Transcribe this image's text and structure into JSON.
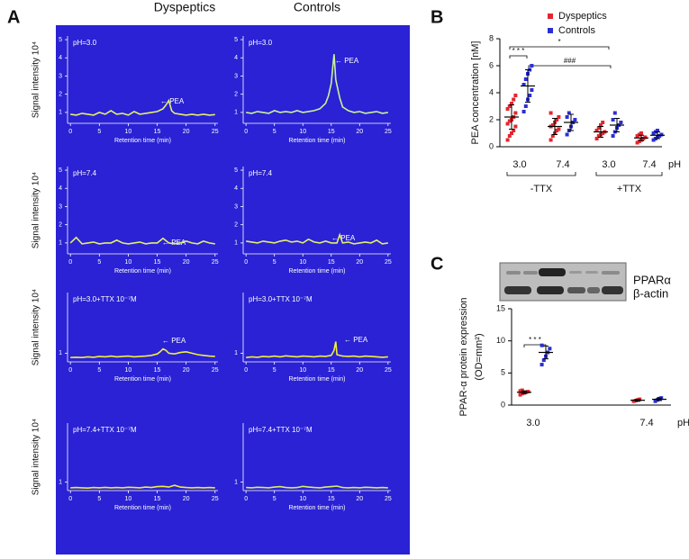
{
  "panel_labels": [
    "A",
    "B",
    "C"
  ],
  "column_titles": [
    "Dyspeptics",
    "Controls"
  ],
  "chart_data": [
    {
      "type": "line",
      "label": "pH=3.0",
      "annotations": [
        "← PEA"
      ],
      "ylabel": "Signal intensity 10⁴",
      "xlabel": "Retention time (min)",
      "color": "#e4ef6c",
      "x": [
        0,
        1,
        2,
        3,
        4,
        5,
        6,
        7,
        8,
        9,
        10,
        11,
        12,
        13,
        14,
        15,
        16,
        16.5,
        17,
        17.5,
        18,
        19,
        20,
        21,
        22,
        23,
        24,
        25
      ],
      "values": [
        0.9,
        0.85,
        0.95,
        0.9,
        0.85,
        1.0,
        0.9,
        1.1,
        0.9,
        0.95,
        0.85,
        1.05,
        0.9,
        0.95,
        1.0,
        1.05,
        1.2,
        1.4,
        1.65,
        1.1,
        0.95,
        0.9,
        0.85,
        0.9,
        0.85,
        0.9,
        0.85,
        0.88
      ],
      "xlim": [
        -0.5,
        25.5
      ],
      "ylim": [
        0.4,
        5.2
      ],
      "xticks": [
        0,
        5,
        10,
        15,
        20,
        25
      ],
      "yticks": [
        1,
        2,
        3,
        4,
        5
      ]
    },
    {
      "type": "line",
      "label": "pH=3.0",
      "annotations": [
        "← PEA"
      ],
      "xlabel": "Retention time (min)",
      "color": "#c9f29a",
      "x": [
        0,
        1,
        2,
        3,
        4,
        5,
        6,
        7,
        8,
        9,
        10,
        11,
        12,
        13,
        14,
        14.5,
        15,
        15.3,
        15.5,
        15.8,
        16,
        16.5,
        17,
        18,
        19,
        20,
        21,
        22,
        23,
        24,
        25
      ],
      "values": [
        1.0,
        0.95,
        1.05,
        1.0,
        0.95,
        1.1,
        1.0,
        1.05,
        1.0,
        1.1,
        1.0,
        1.05,
        1.1,
        1.2,
        1.5,
        1.9,
        2.6,
        3.6,
        4.2,
        2.8,
        2.5,
        1.8,
        1.3,
        1.1,
        1.0,
        1.05,
        0.95,
        1.0,
        1.05,
        0.95,
        1.0
      ],
      "xlim": [
        -0.5,
        25.5
      ],
      "ylim": [
        0.4,
        5.2
      ],
      "xticks": [
        0,
        5,
        10,
        15,
        20,
        25
      ],
      "yticks": [
        1,
        2,
        3,
        4,
        5
      ]
    },
    {
      "type": "line",
      "label": "pH=7.4",
      "annotations": [
        "← PEA"
      ],
      "ylabel": "Signal intensity 10⁴",
      "xlabel": "Retention time (min)",
      "color": "#e4ef6c",
      "x": [
        0,
        1,
        2,
        3,
        4,
        5,
        6,
        7,
        8,
        9,
        10,
        11,
        12,
        13,
        14,
        15,
        16,
        17,
        18,
        19,
        20,
        21,
        22,
        23,
        24,
        25
      ],
      "values": [
        1.0,
        1.3,
        0.95,
        1.0,
        1.05,
        0.95,
        1.0,
        1.0,
        1.15,
        1.0,
        0.95,
        1.0,
        1.05,
        0.95,
        1.0,
        1.0,
        1.25,
        1.0,
        0.95,
        1.0,
        1.1,
        1.0,
        0.95,
        1.1,
        1.0,
        0.95
      ],
      "xlim": [
        -0.5,
        25.5
      ],
      "ylim": [
        0.4,
        5.2
      ],
      "xticks": [
        0,
        5,
        10,
        15,
        20,
        25
      ],
      "yticks": [
        1,
        2,
        3,
        4,
        5
      ]
    },
    {
      "type": "line",
      "label": "pH=7.4",
      "annotations": [
        "← PEA"
      ],
      "xlabel": "Retention time (min)",
      "color": "#e4ef6c",
      "x": [
        0,
        1,
        2,
        3,
        4,
        5,
        6,
        7,
        8,
        9,
        10,
        11,
        12,
        13,
        14,
        15,
        16,
        16.5,
        17,
        18,
        19,
        20,
        21,
        22,
        23,
        24,
        25
      ],
      "values": [
        1.1,
        1.05,
        1.0,
        1.1,
        1.05,
        1.0,
        1.1,
        1.15,
        1.05,
        1.1,
        1.0,
        1.2,
        1.05,
        1.0,
        1.1,
        1.0,
        1.0,
        1.45,
        1.0,
        1.05,
        0.95,
        1.0,
        1.05,
        1.0,
        1.15,
        0.95,
        1.0
      ],
      "xlim": [
        -0.5,
        25.5
      ],
      "ylim": [
        0.4,
        5.2
      ],
      "xticks": [
        0,
        5,
        10,
        15,
        20,
        25
      ],
      "yticks": [
        1,
        2,
        3,
        4,
        5
      ]
    },
    {
      "type": "line",
      "label": "pH=3.0+TTX 10⁻⁷M",
      "annotations": [
        "← PEA"
      ],
      "ylabel": "Signal intensity 10⁴",
      "xlabel": "Retention time (min)",
      "color": "#f2ee3c",
      "x": [
        0,
        1,
        2,
        3,
        4,
        5,
        6,
        7,
        8,
        9,
        10,
        11,
        12,
        13,
        14,
        15,
        15.5,
        16,
        16.5,
        17,
        18,
        19,
        20,
        21,
        22,
        23,
        24,
        25
      ],
      "values": [
        0.7,
        0.72,
        0.7,
        0.75,
        0.72,
        0.78,
        0.75,
        0.8,
        0.75,
        0.78,
        0.8,
        0.75,
        0.78,
        0.8,
        0.85,
        0.95,
        1.1,
        1.3,
        1.2,
        1.0,
        0.95,
        1.05,
        1.1,
        1.0,
        0.9,
        0.85,
        0.8,
        0.78
      ],
      "xlim": [
        -0.5,
        25.5
      ],
      "ylim": [
        0.4,
        5.2
      ],
      "xticks": [
        0,
        5,
        10,
        15,
        20,
        25
      ],
      "yticks": [
        1
      ]
    },
    {
      "type": "line",
      "label": "pH=3.0+TTX 10⁻⁷M",
      "annotations": [
        "← PEA"
      ],
      "xlabel": "Retention time (min)",
      "color": "#f2ee3c",
      "x": [
        0,
        1,
        2,
        3,
        4,
        5,
        6,
        7,
        8,
        9,
        10,
        11,
        12,
        13,
        14,
        15,
        15.5,
        15.8,
        16,
        17,
        18,
        19,
        20,
        21,
        22,
        23,
        24,
        25
      ],
      "values": [
        0.7,
        0.75,
        0.72,
        0.78,
        0.75,
        0.8,
        0.75,
        0.82,
        0.78,
        0.75,
        0.8,
        0.78,
        0.75,
        0.8,
        0.78,
        0.85,
        1.2,
        1.8,
        0.9,
        0.8,
        0.78,
        0.8,
        0.75,
        0.8,
        0.78,
        0.75,
        0.72,
        0.75
      ],
      "xlim": [
        -0.5,
        25.5
      ],
      "ylim": [
        0.4,
        5.2
      ],
      "xticks": [
        0,
        5,
        10,
        15,
        20,
        25
      ],
      "yticks": [
        1
      ]
    },
    {
      "type": "line",
      "label": "pH=7.4+TTX 10⁻⁷M",
      "ylabel": "Signal intensity 10⁴",
      "xlabel": "Retention time (min)",
      "color": "#f2ee3c",
      "x": [
        0,
        1,
        2,
        3,
        4,
        5,
        6,
        7,
        8,
        9,
        10,
        11,
        12,
        13,
        14,
        15,
        16,
        17,
        18,
        19,
        20,
        21,
        22,
        23,
        24,
        25
      ],
      "values": [
        0.6,
        0.62,
        0.6,
        0.58,
        0.62,
        0.6,
        0.63,
        0.6,
        0.62,
        0.6,
        0.64,
        0.62,
        0.6,
        0.65,
        0.62,
        0.68,
        0.7,
        0.65,
        0.78,
        0.65,
        0.62,
        0.6,
        0.62,
        0.6,
        0.62,
        0.6
      ],
      "xlim": [
        -0.5,
        25.5
      ],
      "ylim": [
        0.4,
        5.2
      ],
      "xticks": [
        0,
        5,
        10,
        15,
        20,
        25
      ],
      "yticks": [
        1
      ]
    },
    {
      "type": "line",
      "label": "pH=7.4+TTX 10⁻⁷M",
      "xlabel": "Retention time (min)",
      "color": "#d8ef6c",
      "x": [
        0,
        1,
        2,
        3,
        4,
        5,
        6,
        7,
        8,
        9,
        10,
        11,
        12,
        13,
        14,
        15,
        16,
        17,
        18,
        19,
        20,
        21,
        22,
        23,
        24,
        25
      ],
      "values": [
        0.62,
        0.6,
        0.64,
        0.62,
        0.6,
        0.65,
        0.68,
        0.62,
        0.6,
        0.62,
        0.7,
        0.65,
        0.62,
        0.6,
        0.65,
        0.68,
        0.72,
        0.62,
        0.6,
        0.62,
        0.6,
        0.64,
        0.62,
        0.6,
        0.62,
        0.6
      ],
      "xlim": [
        -0.5,
        25.5
      ],
      "ylim": [
        0.4,
        5.2
      ],
      "xticks": [
        0,
        5,
        10,
        15,
        20,
        25
      ],
      "yticks": [
        1
      ]
    },
    {
      "type": "dot",
      "ylabel": "PEA concentration [nM]",
      "xlabel": "pH",
      "categories": [
        "3.0",
        "7.4",
        "3.0",
        "7.4"
      ],
      "groups": [
        "-TTX",
        "+TTX"
      ],
      "annotations": [
        "* * *",
        "*",
        "###"
      ],
      "legend": "top-right",
      "ylim": [
        0,
        8
      ],
      "yticks": [
        0,
        2,
        4,
        6,
        8
      ],
      "series": [
        {
          "name": "Dyspeptics",
          "color": "#e3262e",
          "values": [
            [
              0.5,
              0.8,
              1.0,
              1.2,
              1.5,
              1.7,
              1.9,
              2.0,
              2.2,
              2.5,
              2.8,
              3.0,
              3.2,
              3.5,
              3.8
            ],
            [
              0.5,
              0.8,
              1.0,
              1.2,
              1.3,
              1.5,
              1.6,
              1.8,
              2.0,
              2.2,
              2.5
            ],
            [
              0.6,
              0.8,
              0.9,
              1.0,
              1.1,
              1.2,
              1.4,
              1.6,
              1.8
            ],
            [
              0.3,
              0.4,
              0.5,
              0.6,
              0.7,
              0.8,
              0.9,
              1.0
            ]
          ],
          "means": [
            2.2,
            1.5,
            1.1,
            0.65
          ],
          "sd": [
            0.9,
            0.6,
            0.4,
            0.2
          ]
        },
        {
          "name": "Controls",
          "color": "#2b2fd2",
          "values": [
            [
              2.6,
              3.0,
              3.5,
              3.8,
              4.2,
              4.6,
              5.0,
              5.4,
              5.7,
              6.0
            ],
            [
              0.9,
              1.2,
              1.5,
              1.8,
              2.0,
              2.2,
              2.5
            ],
            [
              0.8,
              1.1,
              1.4,
              1.6,
              1.8,
              2.0,
              2.5
            ],
            [
              0.5,
              0.6,
              0.7,
              0.8,
              0.9,
              1.0,
              1.1,
              1.2
            ]
          ],
          "means": [
            4.5,
            1.8,
            1.6,
            0.85
          ],
          "sd": [
            1.2,
            0.6,
            0.5,
            0.25
          ]
        }
      ]
    },
    {
      "type": "dot",
      "ylabel": [
        "PPAR-α protein expression",
        "(OD=mm²)"
      ],
      "xlabel": "pH",
      "categories": [
        "3.0",
        "7.4"
      ],
      "annotations": [
        "* * *"
      ],
      "blot_labels": [
        "PPARα",
        "β-actin"
      ],
      "ylim": [
        0,
        15
      ],
      "yticks": [
        0,
        5,
        10,
        15
      ],
      "series": [
        {
          "name": "Dyspeptics",
          "color": "#e3262e",
          "values": [
            [
              1.6,
              1.8,
              1.9,
              2.0,
              2.1,
              2.2,
              2.3
            ],
            [
              0.6,
              0.7,
              0.8,
              0.9
            ]
          ],
          "means": [
            2.0,
            0.75
          ],
          "sd": [
            0.2,
            0.15
          ]
        },
        {
          "name": "Controls",
          "color": "#2b2fd2",
          "values": [
            [
              6.3,
              7.0,
              7.6,
              8.2,
              8.8,
              9.3
            ],
            [
              0.6,
              0.8,
              1.0,
              1.1
            ]
          ],
          "means": [
            8.2,
            0.9
          ],
          "sd": [
            1.0,
            0.2
          ]
        }
      ]
    }
  ]
}
